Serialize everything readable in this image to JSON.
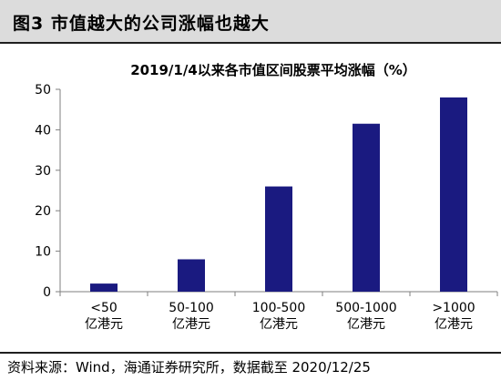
{
  "figure_label": "图3 市值越大的公司涨幅也越大",
  "source_note": "资料来源：Wind，海通证券研究所，数据截至 2020/12/25",
  "chart_data": {
    "type": "bar",
    "title": "2019/1/4以来各市值区间股票平均涨幅（%）",
    "categories": [
      [
        "<50",
        "亿港元"
      ],
      [
        "50-100",
        "亿港元"
      ],
      [
        "100-500",
        "亿港元"
      ],
      [
        "500-1000",
        "亿港元"
      ],
      [
        ">1000",
        "亿港元"
      ]
    ],
    "values": [
      2,
      8,
      26,
      41.5,
      48
    ],
    "ylim": [
      0,
      50
    ],
    "yticks": [
      0,
      10,
      20,
      30,
      40,
      50
    ],
    "bar_color": "#1a1a80",
    "grid": false,
    "legend": "none",
    "xlabel": "",
    "ylabel": ""
  }
}
